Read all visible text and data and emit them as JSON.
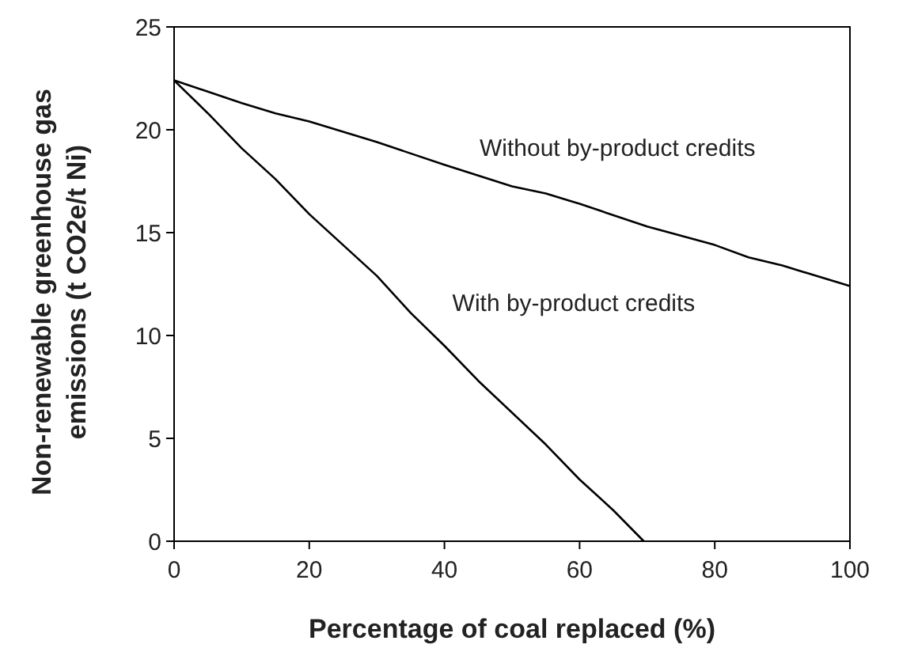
{
  "chart_data": {
    "type": "line",
    "xlabel": "Percentage of coal replaced (%)",
    "ylabel": "Non-renewable greenhouse gas emissions (t CO2e/t Ni)",
    "xlim": [
      0,
      100
    ],
    "xticks": [
      0,
      20,
      40,
      60,
      80,
      100
    ],
    "ylim": [
      0,
      25
    ],
    "yticks": [
      0,
      5,
      10,
      15,
      20,
      25
    ],
    "grid": false,
    "marker": "none",
    "line_style": "solid",
    "series": [
      {
        "name": "Without by-product credits",
        "color": "#000000",
        "x": [
          0,
          10,
          15,
          20,
          30,
          40,
          50,
          55,
          60,
          70,
          80,
          85,
          90,
          100
        ],
        "values": [
          22.4,
          21.3,
          20.8,
          20.4,
          19.4,
          18.3,
          17.25,
          16.9,
          16.4,
          15.3,
          14.4,
          13.8,
          13.4,
          12.4
        ]
      },
      {
        "name": "With by-product credits",
        "color": "#000000",
        "x": [
          0,
          5,
          10,
          15,
          20,
          30,
          35,
          40,
          45,
          55,
          60,
          65,
          69.5
        ],
        "values": [
          22.4,
          20.8,
          19.1,
          17.6,
          15.9,
          12.9,
          11.1,
          9.5,
          7.8,
          4.7,
          3.0,
          1.5,
          0
        ]
      }
    ]
  }
}
